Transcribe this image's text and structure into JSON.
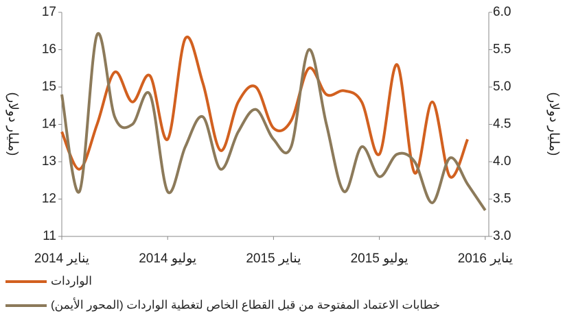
{
  "chart_data": {
    "type": "line",
    "y_label": "(مليار دولار)",
    "y2_label": "(مليار دولار)",
    "categories": [
      "يناير 2014",
      null,
      null,
      null,
      null,
      null,
      "يوليو 2014",
      null,
      null,
      null,
      null,
      null,
      "يناير 2015",
      null,
      null,
      null,
      null,
      null,
      "يوليو 2015",
      null,
      null,
      null,
      null,
      null,
      "يناير 2016"
    ],
    "series": [
      {
        "name": "الواردات",
        "color": "#d2601f",
        "values": [
          13.8,
          12.8,
          14.0,
          15.4,
          14.6,
          15.3,
          13.6,
          16.3,
          15.1,
          13.3,
          14.6,
          15.0,
          13.9,
          14.1,
          15.5,
          14.8,
          14.9,
          14.6,
          13.2,
          15.6,
          12.7,
          14.6,
          12.6,
          13.6,
          null
        ]
      },
      {
        "name": "خطابات الاعتماد المفتوحة من قبل القطاع الخاص لتغطية الواردات (المحور الأيمن)",
        "color": "#8c7a5a",
        "axis": "y2",
        "values": [
          4.9,
          3.6,
          5.7,
          4.6,
          4.5,
          4.9,
          3.6,
          4.2,
          4.6,
          3.9,
          4.4,
          4.7,
          4.3,
          4.2,
          5.5,
          4.5,
          3.6,
          4.2,
          3.8,
          4.1,
          4.0,
          3.45,
          4.05,
          3.7,
          3.35
        ]
      }
    ],
    "ylim": [
      11,
      17
    ],
    "yticks": [
      11,
      12,
      13,
      14,
      15,
      16,
      17
    ],
    "y2lim": [
      3,
      6
    ],
    "y2ticks": [
      {
        "value": 3,
        "label": "3.0"
      },
      3.5,
      {
        "value": 4,
        "label": "4.0"
      },
      4.5,
      {
        "value": 5,
        "label": "5.0"
      },
      5.5,
      {
        "value": 6,
        "label": "6.0"
      }
    ],
    "grid": false,
    "legend": "bottom"
  }
}
